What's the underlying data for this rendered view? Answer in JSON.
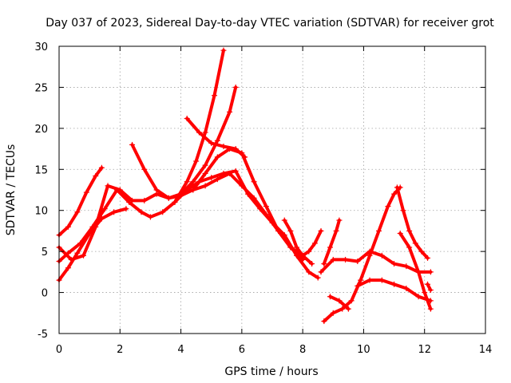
{
  "chart_data": {
    "type": "scatter",
    "title": "Day 037 of 2023, Sidereal Day-to-day VTEC variation (SDTVAR) for receiver grot",
    "xlabel": "GPS time / hours",
    "ylabel": "SDTVAR / TECUs",
    "xlim": [
      0,
      14
    ],
    "ylim": [
      -5,
      30
    ],
    "xticks": [
      "0",
      "2",
      "4",
      "6",
      "8",
      "10",
      "12",
      "14"
    ],
    "yticks": [
      "-5",
      "0",
      "5",
      "10",
      "15",
      "20",
      "25",
      "30"
    ],
    "grid": true,
    "marker": "+",
    "color": "#ff0000",
    "series": [
      {
        "x": [
          0.0,
          0.3,
          0.6,
          0.9,
          1.2,
          1.4
        ],
        "y": [
          7.0,
          8.0,
          9.8,
          12.2,
          14.2,
          15.2
        ]
      },
      {
        "x": [
          0.0,
          0.3,
          0.6,
          1.0,
          1.4,
          1.8,
          2.2
        ],
        "y": [
          1.5,
          3.0,
          4.8,
          7.2,
          9.0,
          9.8,
          10.2
        ]
      },
      {
        "x": [
          0.0,
          0.3,
          0.7,
          1.1,
          1.5,
          1.9,
          2.3,
          2.7,
          3.0,
          3.4,
          3.8,
          4.2,
          4.6,
          5.0,
          5.4,
          5.8,
          6.2,
          6.6,
          7.0,
          7.4,
          7.8,
          8.2,
          8.5
        ],
        "y": [
          3.8,
          4.8,
          6.0,
          8.0,
          10.2,
          12.5,
          11.0,
          9.8,
          9.2,
          9.8,
          11.0,
          12.5,
          13.5,
          14.0,
          14.5,
          14.8,
          12.0,
          10.2,
          8.5,
          7.0,
          4.5,
          2.5,
          1.8
        ]
      },
      {
        "x": [
          0.0,
          0.4,
          0.8,
          1.2,
          1.6,
          2.0,
          2.4,
          2.8,
          3.2,
          3.6,
          4.0,
          4.4,
          4.8,
          5.2,
          5.6,
          6.0,
          6.4,
          6.8,
          7.2,
          7.6,
          8.0
        ],
        "y": [
          5.5,
          4.0,
          4.5,
          8.0,
          13.0,
          12.5,
          11.2,
          11.2,
          12.0,
          11.5,
          12.0,
          12.5,
          13.0,
          13.8,
          14.5,
          13.0,
          11.5,
          9.5,
          7.5,
          5.5,
          4.0
        ]
      },
      {
        "x": [
          2.4,
          2.8,
          3.2,
          3.6,
          4.0,
          4.4,
          4.8,
          5.2,
          5.6,
          6.0,
          6.4,
          6.8,
          7.2,
          7.6,
          8.0,
          8.3
        ],
        "y": [
          18.0,
          15.0,
          12.5,
          11.5,
          11.8,
          12.5,
          14.5,
          16.5,
          17.5,
          17.0,
          13.5,
          10.5,
          7.5,
          5.5,
          4.5,
          3.5
        ]
      },
      {
        "x": [
          4.0,
          4.4,
          4.8,
          5.2,
          5.6,
          5.8
        ],
        "y": [
          12.0,
          13.5,
          15.5,
          18.5,
          22.0,
          25.0
        ]
      },
      {
        "x": [
          3.8,
          4.2,
          4.5,
          4.8,
          5.1,
          5.4
        ],
        "y": [
          11.0,
          13.5,
          16.0,
          19.5,
          24.0,
          29.5
        ]
      },
      {
        "x": [
          4.2,
          4.6,
          5.0,
          5.4,
          5.8,
          6.1
        ],
        "y": [
          21.2,
          19.5,
          18.2,
          17.8,
          17.5,
          16.5
        ]
      },
      {
        "x": [
          7.4,
          7.6,
          7.8,
          8.0,
          8.2,
          8.4,
          8.6
        ],
        "y": [
          8.8,
          7.5,
          5.5,
          4.5,
          5.0,
          6.0,
          7.5
        ]
      },
      {
        "x": [
          8.7,
          8.9,
          9.1,
          9.2
        ],
        "y": [
          3.5,
          5.5,
          7.5,
          8.8
        ]
      },
      {
        "x": [
          8.6,
          9.0,
          9.4,
          9.8,
          10.2,
          10.6,
          11.0,
          11.4,
          11.8,
          12.2
        ],
        "y": [
          2.5,
          4.0,
          4.0,
          3.8,
          5.0,
          4.5,
          3.5,
          3.2,
          2.5,
          2.5
        ]
      },
      {
        "x": [
          8.7,
          9.0,
          9.3,
          9.6,
          9.9,
          10.2,
          10.5,
          10.8,
          11.0,
          11.2
        ],
        "y": [
          -3.5,
          -2.5,
          -2.0,
          -1.0,
          1.5,
          4.5,
          7.5,
          10.5,
          12.0,
          12.8
        ]
      },
      {
        "x": [
          11.1,
          11.3,
          11.5,
          11.7,
          11.9,
          12.1
        ],
        "y": [
          12.8,
          10.0,
          7.5,
          6.0,
          5.0,
          4.2
        ]
      },
      {
        "x": [
          8.9,
          9.2,
          9.5
        ],
        "y": [
          -0.5,
          -1.0,
          -2.0
        ]
      },
      {
        "x": [
          9.8,
          10.2,
          10.6,
          11.0,
          11.4,
          11.8,
          12.2
        ],
        "y": [
          0.8,
          1.5,
          1.5,
          1.0,
          0.5,
          -0.5,
          -1.0
        ]
      },
      {
        "x": [
          11.2,
          11.5,
          11.8,
          12.0,
          12.2
        ],
        "y": [
          7.2,
          5.5,
          2.5,
          0.0,
          -2.0
        ]
      },
      {
        "x": [
          12.1,
          12.2
        ],
        "y": [
          1.0,
          0.3
        ]
      }
    ]
  }
}
